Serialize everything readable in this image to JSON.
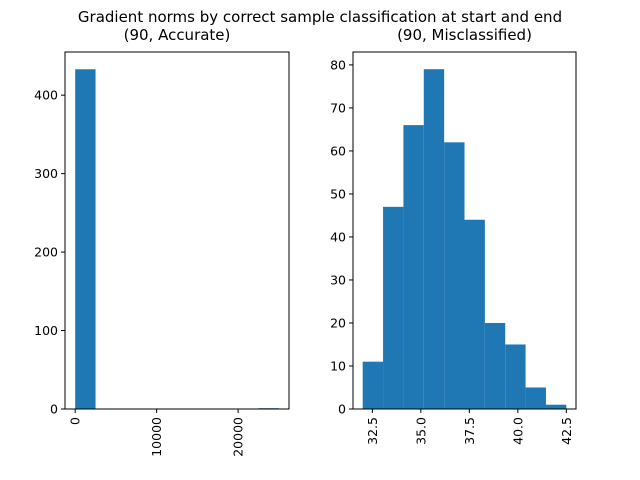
{
  "figure": {
    "suptitle": "Gradient norms by correct sample classification at start and end"
  },
  "colors": {
    "bar": "#1f77b4",
    "axis": "#000000",
    "background": "#ffffff"
  },
  "chart_data": [
    {
      "type": "bar",
      "histogram": true,
      "title": "(90, Accurate)",
      "bin_edges": [
        0,
        2500,
        5000,
        7500,
        10000,
        12500,
        15000,
        17500,
        20000,
        22500,
        25000
      ],
      "counts": [
        433,
        0,
        0,
        0,
        0,
        0,
        0,
        0,
        0,
        1
      ],
      "xlim": [
        -1250,
        26250
      ],
      "ylim": [
        0,
        455
      ],
      "xticks": [
        0,
        10000,
        20000
      ],
      "xtick_labels": [
        "0",
        "10000",
        "20000"
      ],
      "yticks": [
        0,
        100,
        200,
        300,
        400
      ],
      "ytick_labels": [
        "0",
        "100",
        "200",
        "300",
        "400"
      ],
      "xtick_rotation": 90,
      "grid": false,
      "legend": "none"
    },
    {
      "type": "bar",
      "histogram": true,
      "title": "(90, Misclassified)",
      "bin_edges": [
        32.0,
        33.05,
        34.1,
        35.15,
        36.2,
        37.25,
        38.3,
        39.35,
        40.4,
        41.45,
        42.5
      ],
      "counts": [
        11,
        47,
        66,
        79,
        62,
        44,
        20,
        15,
        5,
        1
      ],
      "xlim": [
        31.5,
        43.0
      ],
      "ylim": [
        0,
        83
      ],
      "xticks": [
        32.5,
        35.0,
        37.5,
        40.0,
        42.5
      ],
      "xtick_labels": [
        "32.5",
        "35.0",
        "37.5",
        "40.0",
        "42.5"
      ],
      "yticks": [
        0,
        10,
        20,
        30,
        40,
        50,
        60,
        70,
        80
      ],
      "ytick_labels": [
        "0",
        "10",
        "20",
        "30",
        "40",
        "50",
        "60",
        "70",
        "80"
      ],
      "xtick_rotation": 90,
      "grid": false,
      "legend": "none"
    }
  ]
}
